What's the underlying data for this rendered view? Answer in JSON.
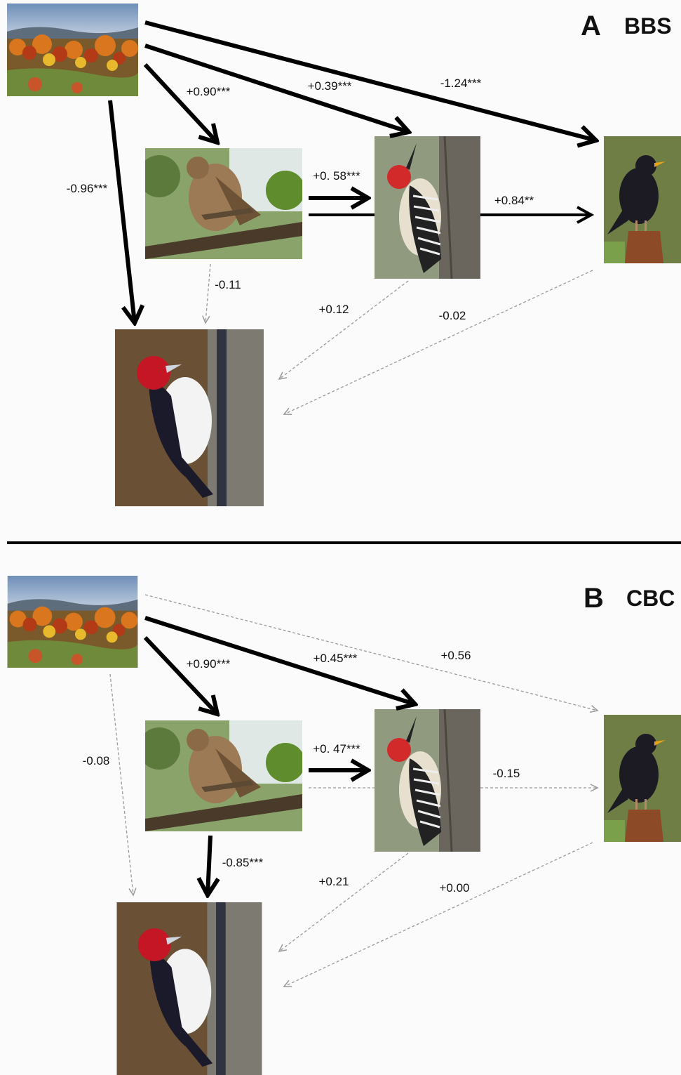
{
  "panels": [
    {
      "letter": "A",
      "survey": "BBS",
      "paths": {
        "habitat_to_starling": "-1.24***",
        "habitat_to_red_bellied": "+0.39***",
        "habitat_to_hawk": "+0.90***",
        "habitat_to_red_headed": "-0.96***",
        "hawk_to_red_bellied": "+0. 58***",
        "hawk_to_starling": "+0.84**",
        "hawk_to_red_headed": "-0.11",
        "red_bellied_to_red_headed": "+0.12",
        "starling_to_red_headed": "-0.02"
      }
    },
    {
      "letter": "B",
      "survey": "CBC",
      "paths": {
        "habitat_to_starling": "+0.56",
        "habitat_to_red_bellied": "+0.45***",
        "habitat_to_hawk": "+0.90***",
        "habitat_to_red_headed": "-0.08",
        "hawk_to_red_bellied": "+0. 47***",
        "hawk_to_starling": "-0.15",
        "hawk_to_red_headed": "-0.85***",
        "red_bellied_to_red_headed": "+0.21",
        "starling_to_red_headed": "+0.00"
      }
    }
  ]
}
